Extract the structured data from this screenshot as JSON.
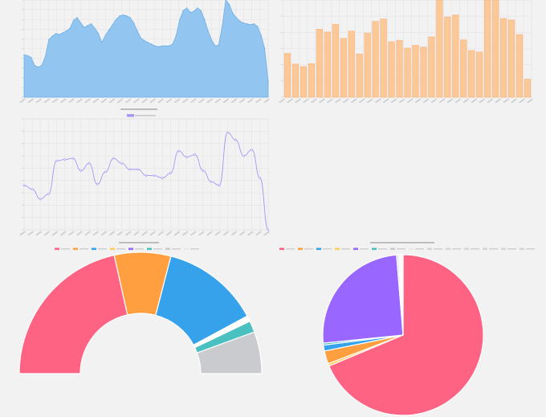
{
  "colors": {
    "area_fill": "#92c5ef",
    "area_stroke": "#6fb0e6",
    "bar_fill": "#fdc897",
    "bar_stroke": "#f6b27a",
    "line_stroke": "#a996f6",
    "grid": "#e4e4e4",
    "pie_palette": [
      "#ff6384",
      "#ff9f40",
      "#36a2eb",
      "#ffcd56",
      "#9966ff",
      "#4bc0c0",
      "#c9cbcf",
      "#e7e9ed"
    ]
  },
  "chart_data": [
    {
      "type": "area",
      "title": "",
      "ylim": [
        0,
        11
      ],
      "grid": true,
      "values": [
        4.8,
        4.7,
        4.5,
        3.6,
        3.4,
        3.6,
        4.6,
        6.5,
        6.9,
        7.2,
        7.1,
        7.3,
        7.5,
        7.8,
        8.7,
        9.0,
        8.4,
        7.9,
        8.1,
        8.3,
        7.8,
        7.2,
        6.2,
        7.0,
        7.6,
        8.2,
        8.8,
        9.2,
        9.3,
        9.2,
        9.0,
        8.4,
        7.5,
        6.7,
        6.4,
        6.2,
        6.0,
        5.8,
        5.7,
        5.8,
        5.8,
        5.8,
        6.0,
        7.0,
        8.8,
        9.8,
        10.1,
        9.6,
        9.7,
        10.1,
        9.8,
        8.8,
        7.5,
        6.5,
        5.8,
        5.9,
        8.0,
        11.0,
        10.5,
        9.5,
        9.0,
        8.6,
        8.4,
        8.3,
        8.2,
        8.3,
        8.0,
        7.0,
        5.5,
        1.8
      ]
    },
    {
      "type": "bar",
      "title": "",
      "ylim": [
        0,
        1000
      ],
      "grid": true,
      "values": [
        450,
        340,
        315,
        345,
        700,
        670,
        750,
        605,
        680,
        445,
        660,
        780,
        805,
        570,
        585,
        505,
        535,
        515,
        620,
        1000,
        825,
        845,
        590,
        480,
        465,
        1000,
        1000,
        810,
        795,
        645,
        185
      ]
    },
    {
      "type": "line",
      "title": "",
      "ylim": [
        0,
        900
      ],
      "grid": true,
      "values": [
        360,
        330,
        250,
        290,
        560,
        570,
        580,
        480,
        540,
        370,
        470,
        580,
        540,
        490,
        490,
        440,
        440,
        420,
        460,
        640,
        590,
        610,
        480,
        390,
        360,
        790,
        730,
        600,
        650,
        420,
        0
      ]
    },
    {
      "type": "pie",
      "variant": "half-doughnut",
      "title": "",
      "values": [
        30.9,
        10.8,
        18.8,
        1.1,
        2.2,
        8.0
      ]
    },
    {
      "type": "pie",
      "title": "",
      "values": [
        68.7,
        0.5,
        2.6,
        1.2,
        0.4,
        25.3,
        0.4,
        0.3,
        0.3,
        0.3
      ]
    }
  ]
}
